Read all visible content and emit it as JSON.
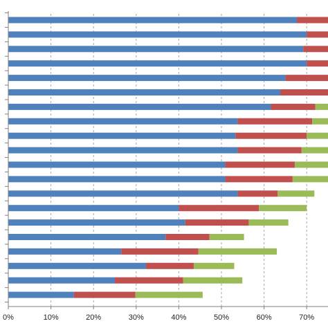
{
  "chart_data": {
    "type": "bar",
    "orientation": "horizontal",
    "stacked": true,
    "x_tick_labels": [
      "0%",
      "10%",
      "20%",
      "30%",
      "40%",
      "50%",
      "60%",
      "70%"
    ],
    "xlim": [
      0,
      75
    ],
    "grid": "vertical-dashed",
    "legend": "none",
    "categories": [
      "",
      "",
      "",
      "",
      "",
      "",
      "",
      "",
      "",
      "",
      "",
      "",
      "",
      "",
      "",
      "",
      "",
      "",
      "",
      ""
    ],
    "series": [
      {
        "color": "#4f81bd",
        "values": [
          67.7,
          70,
          69.2,
          70,
          65,
          63.8,
          61.6,
          53.8,
          53.3,
          53.8,
          50.9,
          50.9,
          53.8,
          40,
          41.5,
          36.9,
          26.5,
          32.3,
          25,
          15.4
        ]
      },
      {
        "color": "#c0504d",
        "values": [
          7.3,
          5,
          5.8,
          5,
          10,
          11.2,
          10.4,
          17.5,
          16.7,
          15,
          16.3,
          15.8,
          9.4,
          18.8,
          14.9,
          10.3,
          18.1,
          11.2,
          16,
          14.4
        ]
      },
      {
        "color": "#9bbb59",
        "values": [
          0,
          0,
          0,
          0,
          0,
          0,
          3,
          3.7,
          5,
          6.2,
          7.8,
          8.3,
          8.6,
          11.2,
          9.3,
          8.1,
          18.4,
          9.5,
          13.9,
          15.8
        ]
      }
    ]
  }
}
